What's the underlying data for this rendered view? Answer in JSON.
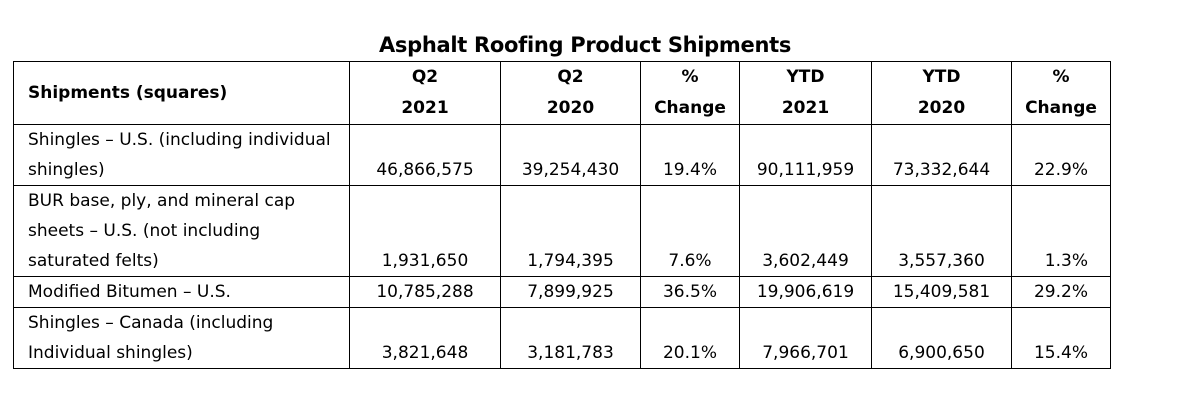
{
  "title": "Asphalt Roofing Product Shipments",
  "table": {
    "headers": [
      {
        "line1": "Shipments (squares)",
        "line2": ""
      },
      {
        "line1": "Q2",
        "line2": "2021"
      },
      {
        "line1": "Q2",
        "line2": "2020"
      },
      {
        "line1": "%",
        "line2": "Change"
      },
      {
        "line1": "YTD",
        "line2": "2021"
      },
      {
        "line1": "YTD",
        "line2": "2020"
      },
      {
        "line1": "%",
        "line2": "Change"
      }
    ],
    "rows": [
      {
        "label": "Shingles – U.S. (including individual shingles)",
        "q2_2021": "46,866,575",
        "q2_2020": "39,254,430",
        "q2_change": "19.4%",
        "ytd_2021": "90,111,959",
        "ytd_2020": "73,332,644",
        "ytd_change": "22.9%"
      },
      {
        "label": "BUR base, ply, and mineral cap sheets – U.S. (not including saturated felts)",
        "q2_2021": "1,931,650",
        "q2_2020": "1,794,395",
        "q2_change": "7.6%",
        "ytd_2021": "3,602,449",
        "ytd_2020": "3,557,360",
        "ytd_change": "1.3%"
      },
      {
        "label": "Modified Bitumen – U.S.",
        "q2_2021": "10,785,288",
        "q2_2020": "7,899,925",
        "q2_change": "36.5%",
        "ytd_2021": "19,906,619",
        "ytd_2020": "15,409,581",
        "ytd_change": "29.2%"
      },
      {
        "label": "Shingles – Canada (including Individual shingles)",
        "q2_2021": "3,821,648",
        "q2_2020": "3,181,783",
        "q2_change": "20.1%",
        "ytd_2021": "7,966,701",
        "ytd_2020": "6,900,650",
        "ytd_change": "15.4%"
      }
    ]
  }
}
